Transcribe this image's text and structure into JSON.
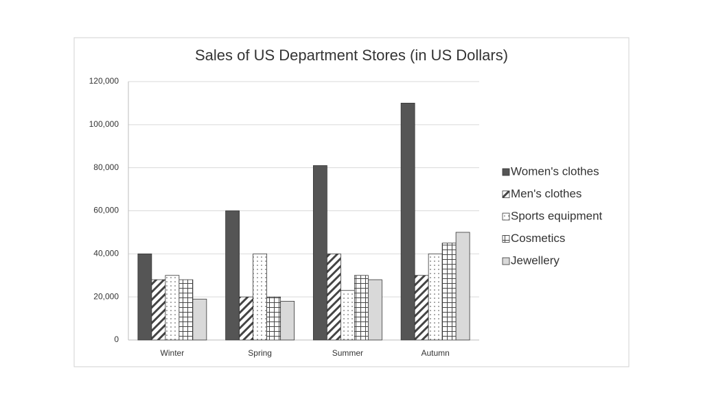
{
  "chart_data": {
    "type": "bar",
    "title": "Sales of US Department Stores (in US Dollars)",
    "categories": [
      "Winter",
      "Spring",
      "Summer",
      "Autumn"
    ],
    "series": [
      {
        "name": "Women's clothes",
        "color": "#555555",
        "pattern": "solid",
        "values": [
          40000,
          60000,
          81000,
          110000
        ]
      },
      {
        "name": "Men's clothes",
        "color": "#ffffff",
        "pattern": "diagonal",
        "values": [
          28000,
          20000,
          40000,
          30000
        ]
      },
      {
        "name": "Sports equipment",
        "color": "#ffffff",
        "pattern": "dots",
        "values": [
          30000,
          40000,
          23000,
          40000
        ]
      },
      {
        "name": "Cosmetics",
        "color": "#ffffff",
        "pattern": "grid",
        "values": [
          28000,
          20000,
          30000,
          45000
        ]
      },
      {
        "name": "Jewellery",
        "color": "#d9d9d9",
        "pattern": "solid",
        "values": [
          19000,
          18000,
          28000,
          50000
        ]
      }
    ],
    "ylim": [
      0,
      120000
    ],
    "yticks": [
      0,
      {
        "value": 20000,
        "label": "20,000"
      },
      {
        "value": 40000,
        "label": "40,000"
      },
      {
        "value": 60000,
        "label": "60,000"
      },
      {
        "value": 80000,
        "label": "80,000"
      },
      {
        "value": 100000,
        "label": "100,000"
      },
      {
        "value": 120000,
        "label": "120,000"
      }
    ],
    "grid": true,
    "legend": "right"
  }
}
